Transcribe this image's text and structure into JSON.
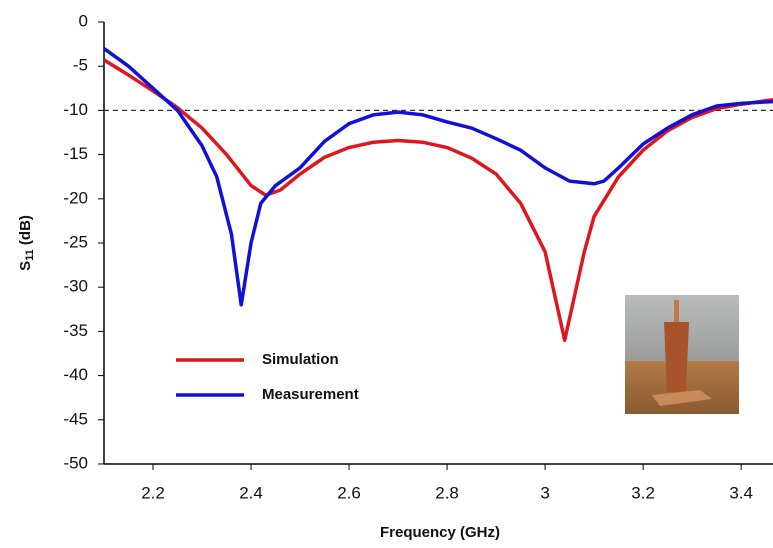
{
  "chart_data": {
    "type": "line",
    "xlabel": "Frequency (GHz)",
    "ylabel": {
      "main": "S",
      "sub": "11",
      "unit": "(dB)"
    },
    "xlim": [
      2.1,
      3.465
    ],
    "ylim": [
      -50,
      0
    ],
    "xticks": [
      2.2,
      2.4,
      2.6,
      2.8,
      3,
      3.2,
      3.4
    ],
    "yticks": [
      0,
      -5,
      -10,
      -15,
      -20,
      -25,
      -30,
      -35,
      -40,
      -45,
      -50
    ],
    "hline": -10,
    "legend": "lower left",
    "series": [
      {
        "name": "Simulation",
        "color": "#e0161d",
        "x": [
          2.1,
          2.15,
          2.2,
          2.25,
          2.3,
          2.35,
          2.4,
          2.43,
          2.46,
          2.5,
          2.55,
          2.6,
          2.65,
          2.7,
          2.75,
          2.8,
          2.85,
          2.9,
          2.95,
          3.0,
          3.02,
          3.04,
          3.06,
          3.08,
          3.1,
          3.15,
          3.2,
          3.25,
          3.3,
          3.35,
          3.4,
          3.465
        ],
        "values": [
          -4.3,
          -6,
          -7.8,
          -9.7,
          -12,
          -15,
          -18.5,
          -19.6,
          -19,
          -17.2,
          -15.3,
          -14.2,
          -13.6,
          -13.4,
          -13.6,
          -14.2,
          -15.4,
          -17.2,
          -20.5,
          -26,
          -31,
          -36,
          -31,
          -26,
          -22,
          -17.5,
          -14.5,
          -12.3,
          -10.8,
          -9.8,
          -9.3,
          -8.8
        ]
      },
      {
        "name": "Measurement",
        "color": "#1010d8",
        "x": [
          2.1,
          2.15,
          2.2,
          2.25,
          2.3,
          2.33,
          2.36,
          2.38,
          2.4,
          2.42,
          2.45,
          2.5,
          2.55,
          2.6,
          2.65,
          2.7,
          2.75,
          2.8,
          2.85,
          2.9,
          2.95,
          3.0,
          3.05,
          3.1,
          3.12,
          3.15,
          3.2,
          3.25,
          3.3,
          3.35,
          3.4,
          3.465
        ],
        "values": [
          -3,
          -5,
          -7.5,
          -10,
          -14,
          -17.5,
          -24,
          -32,
          -25,
          -20.5,
          -18.5,
          -16.5,
          -13.5,
          -11.5,
          -10.5,
          -10.2,
          -10.5,
          -11.3,
          -12,
          -13.2,
          -14.5,
          -16.5,
          -18,
          -18.3,
          -18,
          -16.5,
          -13.8,
          -12,
          -10.5,
          -9.5,
          -9.2,
          -9
        ]
      }
    ]
  }
}
